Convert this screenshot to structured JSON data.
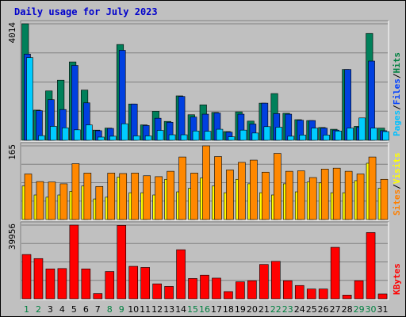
{
  "title": "Daily usage for July 2023",
  "chart_data": {
    "type": "bar",
    "title": "Daily usage for July 2023",
    "categories": [
      "1",
      "2",
      "3",
      "4",
      "5",
      "6",
      "7",
      "8",
      "9",
      "10",
      "11",
      "12",
      "13",
      "14",
      "15",
      "16",
      "17",
      "18",
      "19",
      "20",
      "21",
      "22",
      "23",
      "24",
      "25",
      "26",
      "27",
      "28",
      "29",
      "30",
      "31"
    ],
    "weekend_days": [
      "1",
      "2",
      "8",
      "9",
      "15",
      "16",
      "22",
      "23",
      "29",
      "30"
    ],
    "panels": [
      {
        "id": "hits-files-pages",
        "ymax": 4014,
        "ymax_label": "4014",
        "legend": [
          {
            "label": "Pages",
            "color": "#00c0ff"
          },
          {
            "sep": "/"
          },
          {
            "label": "Files",
            "color": "#0040ff"
          },
          {
            "sep": "/"
          },
          {
            "label": "Hits",
            "color": "#008040"
          }
        ],
        "series": [
          {
            "name": "Hits",
            "color": "#00805a",
            "values": [
              4014,
              1040,
              1700,
              2070,
              2700,
              1730,
              350,
              420,
              3300,
              1250,
              530,
              1000,
              650,
              1530,
              880,
              1220,
              960,
              300,
              980,
              660,
              1280,
              1610,
              930,
              710,
              680,
              440,
              380,
              2440,
              480,
              3680,
              420
            ]
          },
          {
            "name": "Files",
            "color": "#0040e0",
            "values": [
              2970,
              1020,
              1400,
              1060,
              2580,
              1290,
              330,
              410,
              3100,
              1250,
              510,
              760,
              620,
              1510,
              800,
              900,
              940,
              280,
              900,
              560,
              1280,
              920,
              900,
              690,
              680,
              420,
              350,
              2440,
              450,
              2730,
              330
            ]
          },
          {
            "name": "Pages",
            "color": "#00ccff",
            "values": [
              2850,
              160,
              480,
              430,
              360,
              530,
              110,
              140,
              570,
              150,
              150,
              340,
              190,
              190,
              320,
              310,
              380,
              120,
              350,
              250,
              470,
              450,
              140,
              180,
              420,
              180,
              320,
              420,
              770,
              420,
              300
            ]
          }
        ]
      },
      {
        "id": "sites-visits",
        "ymax": 165,
        "ymax_label": "165",
        "legend": [
          {
            "label": "Sites",
            "color": "#ff8000"
          },
          {
            "sep": "/"
          },
          {
            "label": "Visits",
            "color": "#ffff00"
          }
        ],
        "series": [
          {
            "name": "Visits",
            "color": "#ffff00",
            "values": [
              75,
              55,
              50,
              55,
              63,
              75,
              46,
              50,
              95,
              60,
              60,
              55,
              90,
              62,
              70,
              93,
              75,
              60,
              90,
              80,
              60,
              55,
              80,
              62,
              84,
              82,
              60,
              60,
              87,
              126,
              70
            ]
          },
          {
            "name": "Sites",
            "color": "#ff8800",
            "values": [
              102,
              85,
              84,
              80,
              125,
              104,
              74,
              104,
              103,
              104,
              98,
              96,
              108,
              140,
              104,
              165,
              141,
              111,
              128,
              133,
              106,
              148,
              108,
              109,
              94,
              113,
              115,
              108,
              102,
              140,
              90
            ]
          }
        ]
      },
      {
        "id": "kbytes",
        "ymax": 39956,
        "ymax_label": "39956",
        "legend": [
          {
            "label": "KBytes",
            "color": "#ff0000"
          }
        ],
        "series": [
          {
            "name": "KBytes",
            "color": "#ff0000",
            "values": [
              24000,
              21800,
              16200,
              16400,
              39956,
              16200,
              2800,
              14800,
              39800,
              17600,
              17000,
              8100,
              6700,
              26600,
              11000,
              12800,
              11200,
              3900,
              9200,
              9800,
              18600,
              20300,
              9800,
              7200,
              5300,
              5300,
              27900,
              2000,
              9800,
              35900,
              2600
            ]
          }
        ]
      }
    ]
  }
}
